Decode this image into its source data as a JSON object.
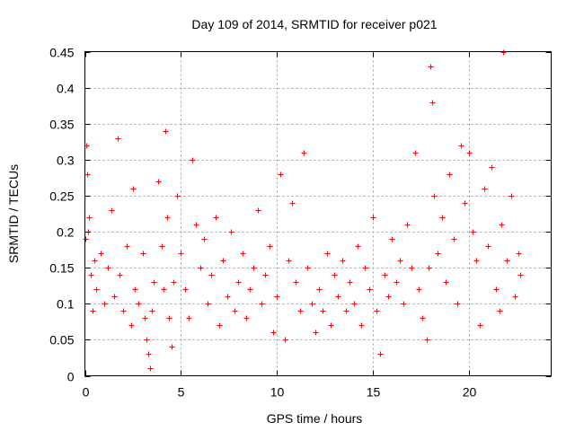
{
  "chart_data": {
    "type": "scatter",
    "title": "Day 109 of 2014, SRMTID for receiver p021",
    "xlabel": "GPS time / hours",
    "ylabel": "SRMTID / TECUs",
    "xlim": [
      0,
      24.3
    ],
    "ylim": [
      0,
      0.45
    ],
    "x_ticks": [
      0,
      5,
      10,
      15,
      20
    ],
    "x_tick_labels": [
      "0",
      "5",
      "10",
      "15",
      "20"
    ],
    "y_ticks": [
      0,
      0.05,
      0.1,
      0.15,
      0.2,
      0.25,
      0.3,
      0.35,
      0.4,
      0.45
    ],
    "y_tick_labels": [
      "0",
      "0.05",
      "0.1",
      "0.15",
      "0.2",
      "0.25",
      "0.3",
      "0.35",
      "0.4",
      "0.45"
    ],
    "grid": true,
    "marker": "plus",
    "series": [
      {
        "name": "SRMTID",
        "color": "#ff0000",
        "x": [
          0.0,
          0.05,
          0.1,
          0.15,
          0.2,
          0.3,
          0.4,
          0.5,
          0.6,
          0.8,
          1.0,
          1.2,
          1.4,
          1.5,
          1.7,
          1.8,
          2.0,
          2.2,
          2.4,
          2.5,
          2.6,
          2.8,
          3.0,
          3.1,
          3.2,
          3.3,
          3.4,
          3.5,
          3.6,
          3.8,
          4.0,
          4.1,
          4.2,
          4.3,
          4.4,
          4.5,
          4.6,
          4.8,
          5.0,
          5.2,
          5.4,
          5.6,
          5.8,
          6.0,
          6.2,
          6.4,
          6.6,
          6.8,
          7.0,
          7.2,
          7.4,
          7.6,
          7.8,
          8.0,
          8.2,
          8.4,
          8.6,
          8.8,
          9.0,
          9.2,
          9.4,
          9.6,
          9.8,
          10.0,
          10.2,
          10.4,
          10.6,
          10.8,
          11.0,
          11.2,
          11.4,
          11.6,
          11.8,
          12.0,
          12.2,
          12.4,
          12.6,
          12.8,
          13.0,
          13.2,
          13.4,
          13.6,
          13.8,
          14.0,
          14.2,
          14.4,
          14.6,
          14.8,
          15.0,
          15.2,
          15.4,
          15.6,
          15.8,
          16.0,
          16.2,
          16.4,
          16.6,
          16.8,
          17.0,
          17.2,
          17.4,
          17.6,
          17.8,
          17.9,
          18.0,
          18.1,
          18.2,
          18.4,
          18.6,
          18.8,
          19.0,
          19.2,
          19.4,
          19.6,
          19.8,
          20.0,
          20.2,
          20.4,
          20.6,
          20.8,
          21.0,
          21.2,
          21.4,
          21.6,
          21.7,
          21.8,
          22.0,
          22.2,
          22.4,
          22.6,
          22.7
        ],
        "y": [
          0.19,
          0.32,
          0.28,
          0.2,
          0.22,
          0.14,
          0.09,
          0.16,
          0.12,
          0.17,
          0.1,
          0.15,
          0.23,
          0.11,
          0.33,
          0.14,
          0.09,
          0.18,
          0.07,
          0.26,
          0.12,
          0.1,
          0.17,
          0.08,
          0.05,
          0.03,
          0.01,
          0.09,
          0.13,
          0.27,
          0.18,
          0.12,
          0.34,
          0.22,
          0.08,
          0.04,
          0.13,
          0.25,
          0.17,
          0.12,
          0.08,
          0.3,
          0.21,
          0.15,
          0.19,
          0.1,
          0.14,
          0.22,
          0.07,
          0.16,
          0.11,
          0.2,
          0.09,
          0.13,
          0.17,
          0.08,
          0.12,
          0.15,
          0.23,
          0.1,
          0.14,
          0.18,
          0.06,
          0.11,
          0.28,
          0.05,
          0.16,
          0.24,
          0.13,
          0.09,
          0.31,
          0.15,
          0.1,
          0.06,
          0.12,
          0.09,
          0.17,
          0.07,
          0.14,
          0.11,
          0.16,
          0.09,
          0.13,
          0.1,
          0.18,
          0.07,
          0.15,
          0.12,
          0.22,
          0.09,
          0.03,
          0.14,
          0.11,
          0.19,
          0.13,
          0.16,
          0.1,
          0.21,
          0.15,
          0.31,
          0.12,
          0.08,
          0.05,
          0.15,
          0.43,
          0.38,
          0.25,
          0.17,
          0.22,
          0.13,
          0.28,
          0.19,
          0.1,
          0.32,
          0.24,
          0.31,
          0.2,
          0.16,
          0.07,
          0.26,
          0.18,
          0.29,
          0.12,
          0.09,
          0.21,
          0.45,
          0.16,
          0.25,
          0.11,
          0.17,
          0.14
        ]
      }
    ]
  }
}
